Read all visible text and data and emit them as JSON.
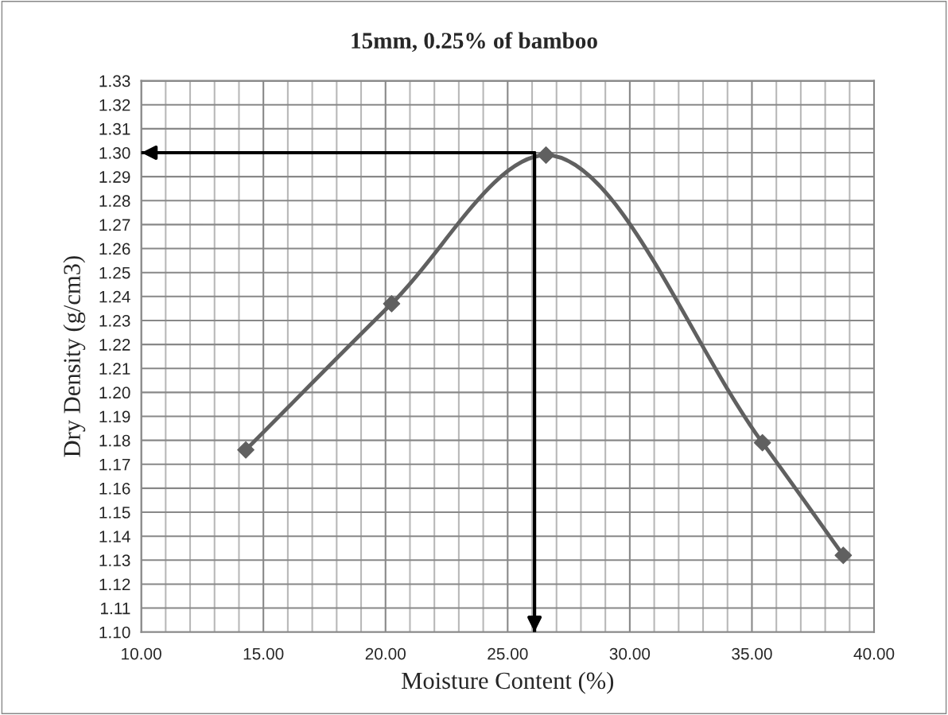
{
  "chart_data": {
    "type": "line",
    "title": "15mm, 0.25% of bamboo",
    "xlabel": "Moisture Content (%)",
    "ylabel": "Dry Density (g/cm3)",
    "x": [
      14.28,
      20.25,
      26.57,
      35.43,
      38.74
    ],
    "series": [
      {
        "color": "#606060",
        "values": [
          1.176,
          1.237,
          1.299,
          1.179,
          1.132
        ]
      }
    ],
    "marker": "diamond",
    "grid": true,
    "xlim": [
      10,
      40
    ],
    "xticks": [
      {
        "value": 10,
        "label": "10.00"
      },
      {
        "value": 11,
        "label": null
      },
      {
        "value": 12,
        "label": null
      },
      {
        "value": 13,
        "label": null
      },
      {
        "value": 14,
        "label": null
      },
      {
        "value": 15,
        "label": "15.00"
      },
      {
        "value": 16,
        "label": null
      },
      {
        "value": 17,
        "label": null
      },
      {
        "value": 18,
        "label": null
      },
      {
        "value": 19,
        "label": null
      },
      {
        "value": 20,
        "label": "20.00"
      },
      {
        "value": 21,
        "label": null
      },
      {
        "value": 22,
        "label": null
      },
      {
        "value": 23,
        "label": null
      },
      {
        "value": 24,
        "label": null
      },
      {
        "value": 25,
        "label": "25.00"
      },
      {
        "value": 26,
        "label": null
      },
      {
        "value": 27,
        "label": null
      },
      {
        "value": 28,
        "label": null
      },
      {
        "value": 29,
        "label": null
      },
      {
        "value": 30,
        "label": "30.00"
      },
      {
        "value": 31,
        "label": null
      },
      {
        "value": 32,
        "label": null
      },
      {
        "value": 33,
        "label": null
      },
      {
        "value": 34,
        "label": null
      },
      {
        "value": 35,
        "label": "35.00"
      },
      {
        "value": 36,
        "label": null
      },
      {
        "value": 37,
        "label": null
      },
      {
        "value": 38,
        "label": null
      },
      {
        "value": 39,
        "label": null
      },
      {
        "value": 40,
        "label": "40.00"
      }
    ],
    "ylim": [
      1.1,
      1.33
    ],
    "yticks": [
      {
        "value": 1.1,
        "label": "1.10"
      },
      1.11,
      1.12,
      1.13,
      1.14,
      1.15,
      1.16,
      1.17,
      1.18,
      1.19,
      {
        "value": 1.2,
        "label": "1.20"
      },
      1.21,
      1.22,
      1.23,
      1.24,
      1.25,
      1.26,
      1.27,
      1.28,
      1.29,
      {
        "value": 1.3,
        "label": "1.30"
      },
      1.31,
      1.32,
      1.33
    ],
    "ref_lines": [
      {
        "axis": "y",
        "value": 1.3,
        "color": "#000000"
      },
      {
        "axis": "x",
        "value": 26.1,
        "color": "#000000"
      }
    ]
  }
}
